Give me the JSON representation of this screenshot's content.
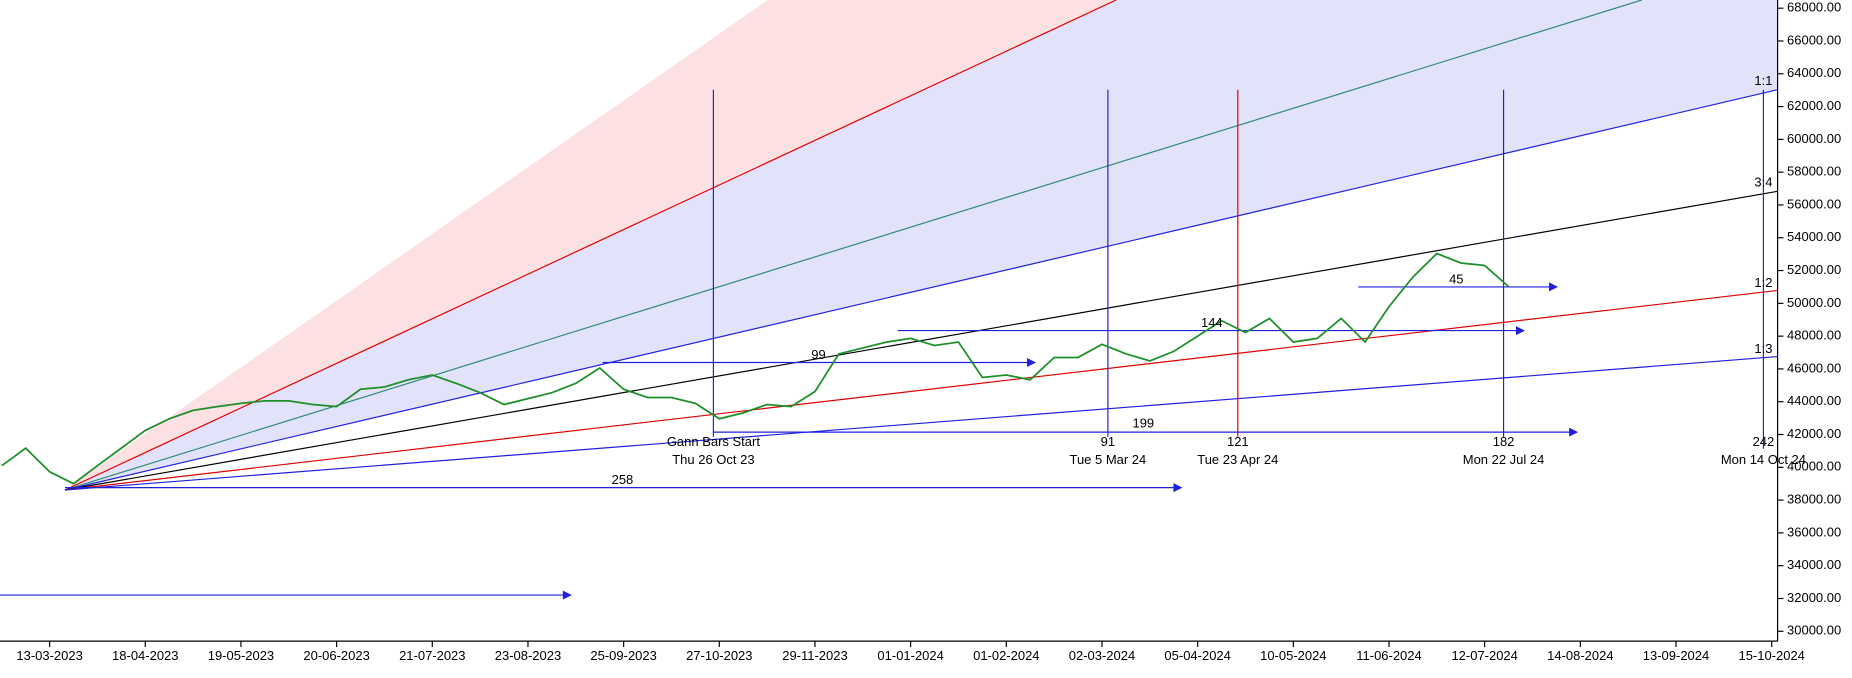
{
  "chart_data": {
    "type": "line",
    "categories": [
      null,
      null,
      "13-03-2023",
      null,
      null,
      null,
      "18-04-2023",
      null,
      null,
      null,
      "19-05-2023",
      null,
      null,
      null,
      "20-06-2023",
      null,
      null,
      null,
      "21-07-2023",
      null,
      null,
      null,
      "23-08-2023",
      null,
      null,
      null,
      "25-09-2023",
      null,
      null,
      null,
      "27-10-2023",
      null,
      null,
      null,
      "29-11-2023",
      null,
      null,
      null,
      "01-01-2024",
      null,
      null,
      null,
      "01-02-2024",
      null,
      null,
      null,
      "02-03-2024",
      null,
      null,
      null,
      "05-04-2024",
      null,
      null,
      null,
      "10-05-2024",
      null,
      null,
      null,
      "11-06-2024",
      null,
      null,
      null,
      "12-07-2024",
      null,
      null,
      null,
      "14-08-2024",
      null,
      null,
      null,
      "13-09-2024",
      null,
      null,
      null,
      "15-10-2024"
    ],
    "series": [
      {
        "color": "#1f8f2a",
        "values": [
          40100,
          41170,
          39730,
          39000,
          40100,
          41170,
          42250,
          42960,
          43470,
          43700,
          43900,
          44050,
          44050,
          43830,
          43700,
          44760,
          44900,
          45340,
          45630,
          45120,
          44550,
          43830,
          44190,
          44550,
          45120,
          46060,
          44760,
          44260,
          44260,
          43900,
          42960,
          43320,
          43830,
          43700,
          44620,
          46920,
          47280,
          47640,
          47860,
          47430,
          47640,
          45480,
          45630,
          45340,
          46700,
          46700,
          47500,
          46920,
          46490,
          47070,
          48000,
          48940,
          48220,
          49080,
          47640,
          47860,
          49080,
          47640,
          49800,
          51600,
          53040,
          52460,
          52310,
          51020,
          null,
          null,
          null,
          null,
          null,
          null,
          null,
          null,
          null,
          null,
          null
        ]
      }
    ],
    "ylim": [
      29400,
      68500
    ],
    "yticks": [
      {
        "value": 30000,
        "label": "30000.00"
      },
      {
        "value": 32000,
        "label": "32000.00"
      },
      {
        "value": 34000,
        "label": "34000.00"
      },
      {
        "value": 36000,
        "label": "36000.00"
      },
      {
        "value": 38000,
        "label": "38000.00"
      },
      {
        "value": 40000,
        "label": "40000.00"
      },
      {
        "value": 42000,
        "label": "42000.00"
      },
      {
        "value": 44000,
        "label": "44000.00"
      },
      {
        "value": 46000,
        "label": "46000.00"
      },
      {
        "value": 48000,
        "label": "48000.00"
      },
      {
        "value": 50000,
        "label": "50000.00"
      },
      {
        "value": 52000,
        "label": "52000.00"
      },
      {
        "value": 54000,
        "label": "54000.00"
      },
      {
        "value": 56000,
        "label": "56000.00"
      },
      {
        "value": 58000,
        "label": "58000.00"
      },
      {
        "value": 60000,
        "label": "60000.00"
      },
      {
        "value": 62000,
        "label": "62000.00"
      },
      {
        "value": 64000,
        "label": "64000.00"
      },
      {
        "value": 66000,
        "label": "66000.00"
      },
      {
        "value": 68000,
        "label": "68000.00"
      }
    ],
    "annotations": [
      "Gann Bars Start",
      "Thu 26 Oct 23",
      "91",
      "Tue 5 Mar 24",
      "121",
      "Tue 23 Apr 24",
      "182",
      "Mon 22 Jul 24",
      "242",
      "Mon 14 Oct 24",
      "199",
      "258",
      "99",
      "144",
      "45",
      "1:1",
      "3:4",
      "1:2",
      "1:3"
    ]
  }
}
